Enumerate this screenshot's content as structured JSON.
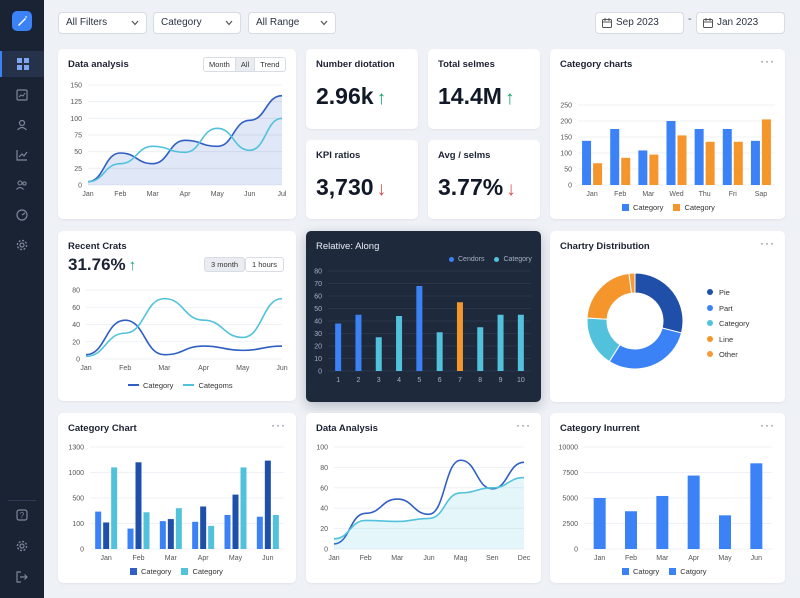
{
  "filters": {
    "filter1": "All Filters",
    "filter2": "Category",
    "filter3": "All Range",
    "date_from": "Sep 2023",
    "date_sep": "-",
    "date_to": "Jan 2023"
  },
  "sidebar": {
    "items": [
      "dashboard-icon",
      "reports-icon",
      "user-icon",
      "trend-icon",
      "users-icon",
      "speed-icon",
      "settings-icon"
    ],
    "bottom": [
      "help-icon",
      "gear-icon",
      "logout-icon"
    ]
  },
  "cards": {
    "data_analysis": {
      "title": "Data analysis",
      "seg": [
        "Month",
        "All",
        "Trend"
      ]
    },
    "kpi1": {
      "title": "Number diotation",
      "value": "2.96k",
      "trend": "up"
    },
    "kpi2": {
      "title": "Total selmes",
      "value": "14.4M",
      "trend": "up"
    },
    "kpi3": {
      "title": "KPI ratios",
      "value": "3,730",
      "trend": "down"
    },
    "kpi4": {
      "title": "Avg / selms",
      "value": "3.77%",
      "trend": "down"
    },
    "category_charts": {
      "title": "Category charts",
      "legend": [
        "Category",
        "Category"
      ]
    },
    "recent": {
      "title": "Recent Crats",
      "value": "31.76%",
      "pills": [
        "3 month",
        "1 hours"
      ],
      "legend": [
        "Category",
        "Categoms"
      ]
    },
    "relative": {
      "title": "Relative: Along",
      "legend": [
        "Cendors",
        "Category"
      ]
    },
    "distribution": {
      "title": "Chartry Distribution",
      "legend": [
        "Pie",
        "Part",
        "Category",
        "Line",
        "Other"
      ]
    },
    "category_chart": {
      "title": "Category Chart",
      "legend": [
        "Category",
        "Category"
      ]
    },
    "data_analysis2": {
      "title": "Data Analysis"
    },
    "inurrent": {
      "title": "Category Inurrent",
      "legend": [
        "Catogry",
        "Catgory"
      ]
    }
  },
  "colors": {
    "blue": "#3b82f6",
    "blue_dark": "#2f5fc4",
    "teal": "#52c2dc",
    "orange": "#f5962c",
    "navy": "#1f4fa8"
  },
  "chart_data": [
    {
      "id": "data_analysis",
      "type": "line",
      "x": [
        "Jan",
        "Feb",
        "Mar",
        "Apr",
        "May",
        "Jun",
        "Jul"
      ],
      "yticks": [
        0,
        25,
        50,
        75,
        100,
        125,
        150
      ],
      "ylim": [
        0,
        150
      ],
      "series": [
        {
          "values": [
            5,
            48,
            32,
            67,
            58,
            97,
            134
          ]
        },
        {
          "values": [
            5,
            32,
            58,
            49,
            85,
            52,
            100
          ]
        }
      ]
    },
    {
      "id": "category_charts",
      "type": "bar",
      "categories": [
        "Jan",
        "Feb",
        "Mar",
        "Wed",
        "Thu",
        "Fri",
        "Sap"
      ],
      "yticks": [
        0,
        50,
        100,
        150,
        200,
        250
      ],
      "ylim": [
        0,
        250
      ],
      "series": [
        {
          "name": "Category",
          "values": [
            138,
            175,
            108,
            200,
            175,
            175,
            138
          ]
        },
        {
          "name": "Category",
          "values": [
            68,
            85,
            95,
            155,
            135,
            135,
            205
          ]
        }
      ]
    },
    {
      "id": "recent",
      "type": "line",
      "x": [
        "Jan",
        "Feb",
        "Mar",
        "Apr",
        "May",
        "Jun"
      ],
      "yticks": [
        0,
        20,
        40,
        60,
        80
      ],
      "ylim": [
        0,
        80
      ],
      "series": [
        {
          "name": "Category",
          "values": [
            5,
            45,
            5,
            15,
            10,
            15
          ]
        },
        {
          "name": "Categoms",
          "values": [
            3,
            30,
            70,
            45,
            25,
            70
          ]
        }
      ]
    },
    {
      "id": "relative",
      "type": "bar",
      "categories": [
        "1",
        "2",
        "3",
        "4",
        "5",
        "6",
        "7",
        "8",
        "9",
        "10"
      ],
      "yticks": [
        0,
        10,
        20,
        30,
        40,
        50,
        60,
        70,
        80
      ],
      "ylim": [
        0,
        80
      ],
      "values": [
        38,
        45,
        27,
        44,
        68,
        31,
        55,
        35,
        45,
        45
      ],
      "bar_colors": [
        "blue",
        "blue",
        "teal",
        "teal",
        "blue",
        "teal",
        "orange",
        "teal",
        "teal",
        "teal"
      ]
    },
    {
      "id": "distribution",
      "type": "pie",
      "labels": [
        "Pie",
        "Part",
        "Category",
        "Line",
        "Other"
      ],
      "values": [
        29,
        30,
        17,
        22,
        2
      ]
    },
    {
      "id": "category_chart",
      "type": "bar",
      "categories": [
        "Jan",
        "Feb",
        "Mar",
        "Apr",
        "May",
        "Jun"
      ],
      "yticks": [
        0,
        100,
        500,
        1000,
        1300
      ],
      "ylim": [
        0,
        300
      ],
      "series": [
        {
          "values": [
            110,
            60,
            82,
            80,
            100,
            95
          ]
        },
        {
          "values": [
            78,
            255,
            88,
            125,
            160,
            260
          ]
        },
        {
          "values": [
            240,
            108,
            120,
            68,
            240,
            100
          ]
        }
      ]
    },
    {
      "id": "data_analysis2",
      "type": "line",
      "x": [
        "Jan",
        "Feb",
        "Mar",
        "Jun",
        "Mag",
        "Sen",
        "Dec"
      ],
      "yticks": [
        0,
        20,
        40,
        60,
        80,
        100
      ],
      "ylim": [
        0,
        100
      ],
      "series": [
        {
          "values": [
            5,
            35,
            49,
            34,
            87,
            59,
            85
          ]
        },
        {
          "values": [
            10,
            28,
            27,
            30,
            55,
            60,
            70
          ]
        }
      ]
    },
    {
      "id": "inurrent",
      "type": "bar",
      "categories": [
        "Jan",
        "Feb",
        "Mar",
        "Apr",
        "May",
        "Jun"
      ],
      "yticks": [
        0,
        2500,
        5000,
        7500,
        10000
      ],
      "ylim": [
        0,
        10000
      ],
      "values": [
        5000,
        3700,
        5200,
        7200,
        3300,
        8400
      ]
    }
  ]
}
